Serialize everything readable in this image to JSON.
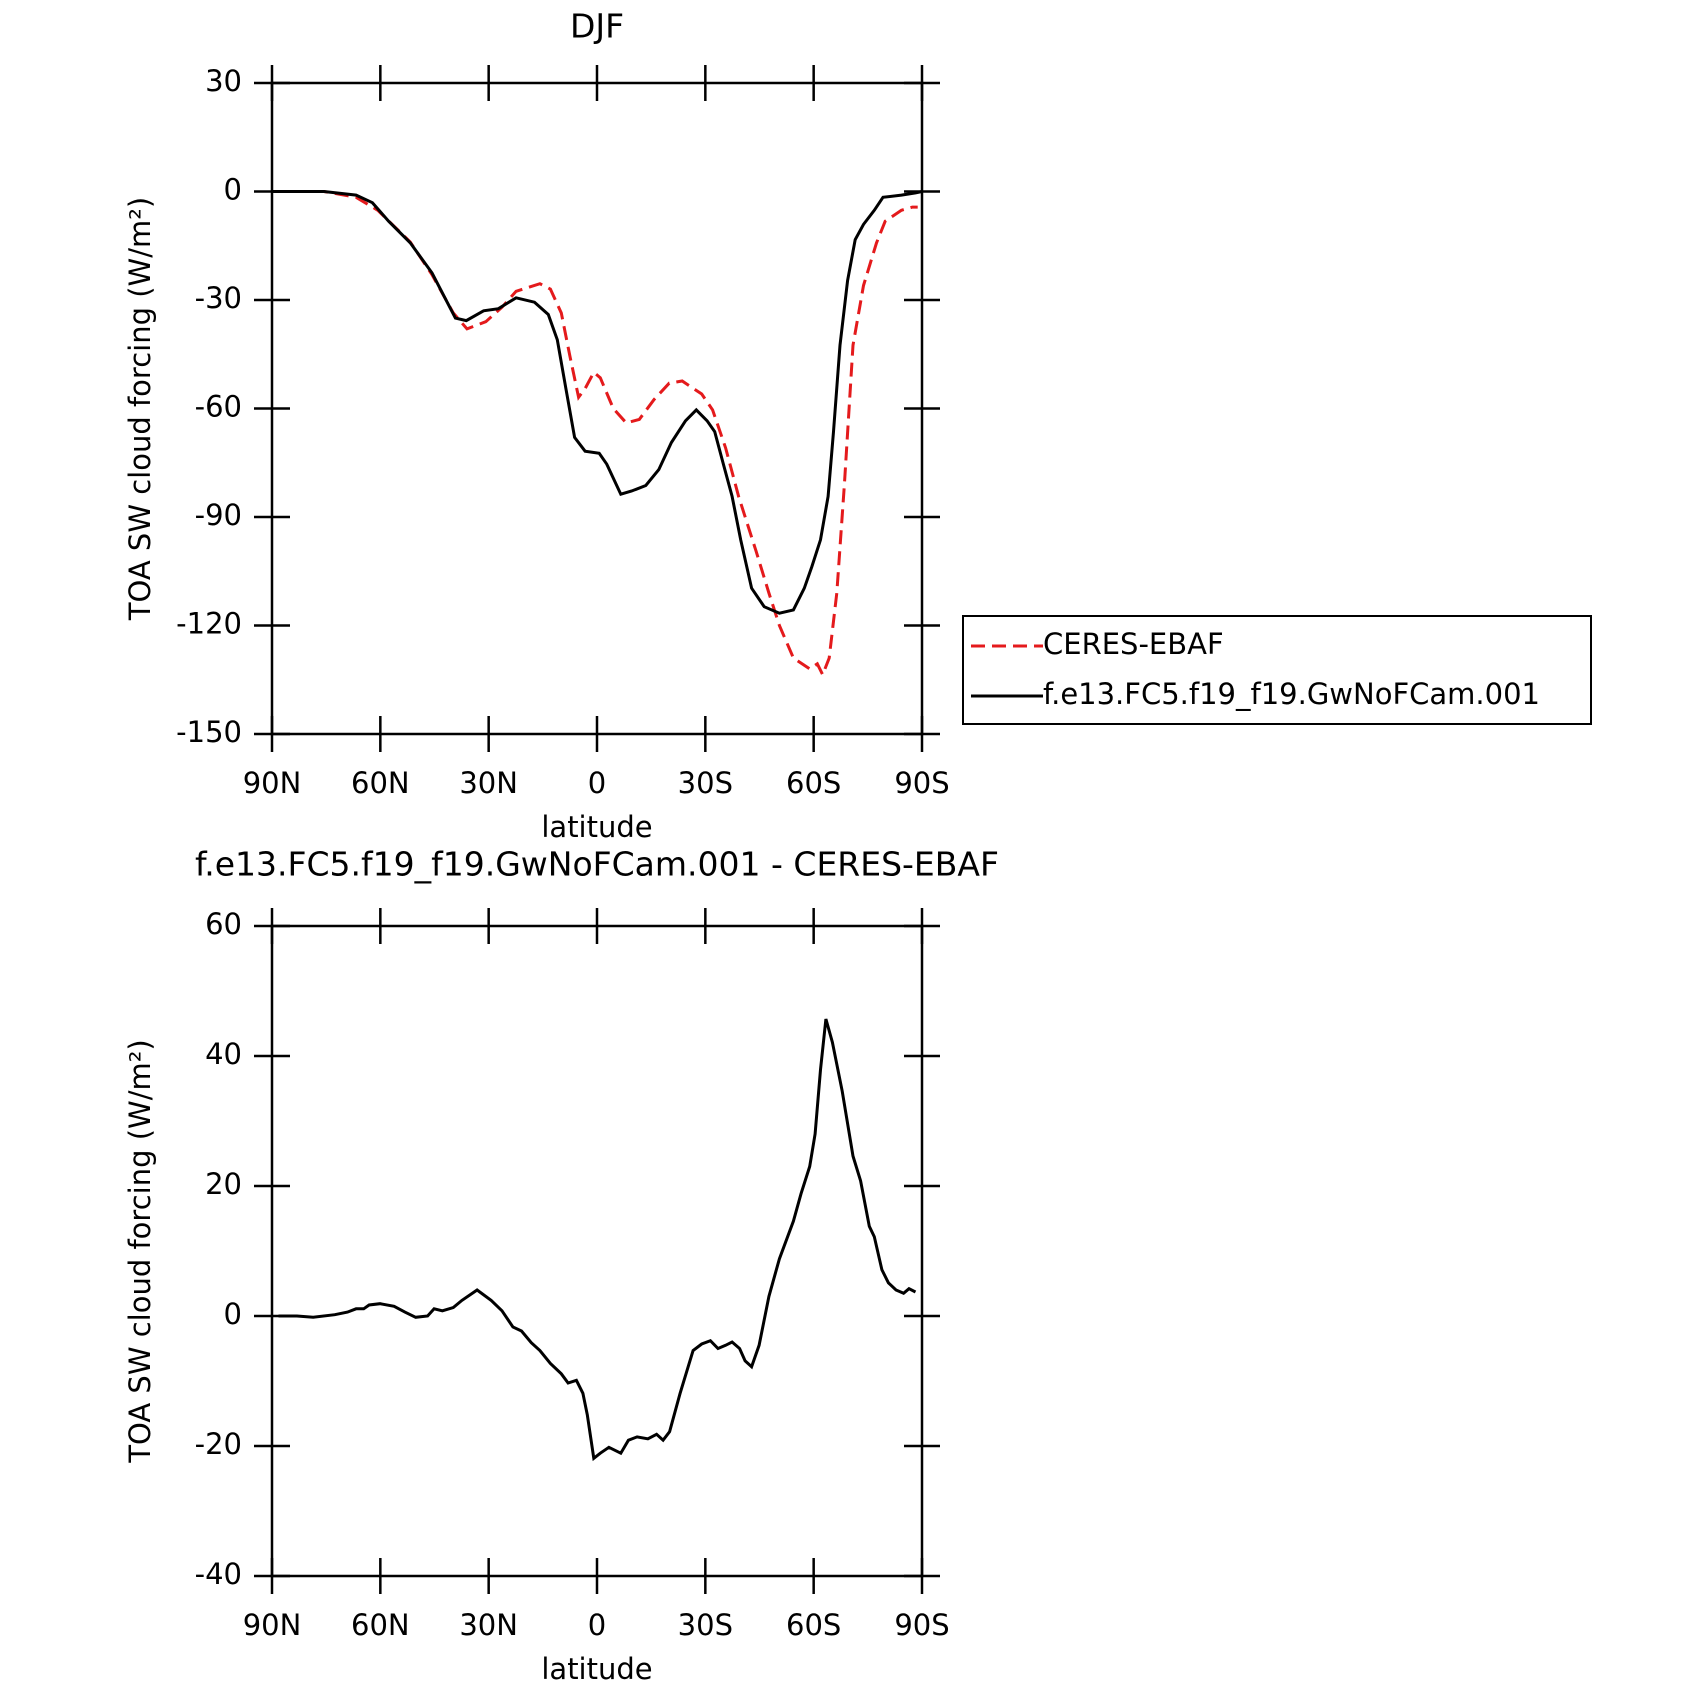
{
  "chart_data": [
    {
      "type": "line",
      "title": "DJF",
      "xlabel": "latitude",
      "ylabel": "TOA SW cloud forcing (W/m²)",
      "xlim": [
        90,
        -90
      ],
      "xticks": [
        {
          "value": 90,
          "label": "90N"
        },
        {
          "value": 60,
          "label": "60N"
        },
        {
          "value": 30,
          "label": "30N"
        },
        0,
        {
          "value": -30,
          "label": "30S"
        },
        {
          "value": -60,
          "label": "60S"
        },
        {
          "value": -90,
          "label": "90S"
        }
      ],
      "ylim": [
        -150,
        30
      ],
      "yticks": [
        -150,
        -120,
        -90,
        -60,
        -30,
        0,
        30
      ],
      "legend": "right",
      "series": [
        {
          "name": "CERES-EBAF",
          "color": "#e41a1c",
          "dash": true,
          "x": [
            90,
            75.6,
            66.7,
            60.7,
            51.7,
            45.7,
            39.8,
            36,
            30.8,
            26.3,
            22.4,
            15.8,
            12.9,
            9.9,
            7.5,
            5.1,
            3.3,
            0.9,
            -0.9,
            -4.5,
            -8.1,
            -11.7,
            -15.8,
            -20,
            -23.6,
            -29,
            -32,
            -35.6,
            -39.2,
            -44,
            -47.6,
            -50.5,
            -54.4,
            -58.9,
            -61,
            -62.5,
            -64.3,
            -66.4,
            -68.5,
            -70.9,
            -73.8,
            -77.4,
            -79.8,
            -84.3,
            -87.3,
            -88.8
          ],
          "values": [
            0,
            0,
            -1.6,
            -5.2,
            -14,
            -23,
            -33.6,
            -38,
            -36,
            -32,
            -27.6,
            -25.5,
            -27,
            -33.6,
            -45.5,
            -56.9,
            -54.5,
            -50,
            -51.5,
            -60,
            -64,
            -63,
            -57.5,
            -53,
            -52.4,
            -56,
            -60.4,
            -70.9,
            -84.3,
            -99.3,
            -111,
            -120,
            -129,
            -132,
            -130.6,
            -133.6,
            -129,
            -111,
            -81,
            -42.5,
            -26,
            -14.2,
            -8.2,
            -5.2,
            -4.3,
            -4.3
          ]
        },
        {
          "name": "f.e13.FC5.f19_f19.GwNoFCam.001",
          "color": "#000000",
          "dash": false,
          "x": [
            90,
            75.6,
            66.7,
            62.2,
            57.7,
            51.7,
            45.7,
            39.2,
            36.2,
            31.4,
            27.3,
            22.4,
            17.3,
            13.5,
            11,
            8.6,
            6.2,
            3.3,
            -0.6,
            -2.7,
            -6.6,
            -9.6,
            -13.5,
            -17.1,
            -20.6,
            -24.5,
            -27.5,
            -30.5,
            -32.6,
            -35,
            -37.4,
            -39.8,
            -42.8,
            -46.3,
            -50.5,
            -54.4,
            -57.4,
            -59.5,
            -61.9,
            -64,
            -65.5,
            -67.3,
            -69.4,
            -71.5,
            -73.8,
            -76.8,
            -79.2,
            -84.3,
            -88.2,
            -90
          ],
          "values": [
            0,
            0,
            -1,
            -3.1,
            -8.2,
            -14.2,
            -22.5,
            -35,
            -35.7,
            -33,
            -32.4,
            -29.4,
            -30.6,
            -34,
            -41,
            -54.5,
            -68,
            -71.8,
            -72.4,
            -75.4,
            -83.7,
            -82.8,
            -81.3,
            -76.9,
            -69.4,
            -63.4,
            -60.4,
            -63.4,
            -66.4,
            -75.4,
            -84.3,
            -96.3,
            -109.7,
            -114.8,
            -116.6,
            -115.7,
            -109.7,
            -103.7,
            -96.3,
            -84.3,
            -66.4,
            -42.5,
            -24.6,
            -13.3,
            -9.1,
            -5.2,
            -1.6,
            -1,
            -0.4,
            0
          ]
        }
      ]
    },
    {
      "type": "line",
      "title": "f.e13.FC5.f19_f19.GwNoFCam.001 - CERES-EBAF",
      "xlabel": "latitude",
      "ylabel": "TOA SW cloud forcing (W/m²)",
      "xlim": [
        90,
        -90
      ],
      "xticks": [
        {
          "value": 90,
          "label": "90N"
        },
        {
          "value": 60,
          "label": "60N"
        },
        {
          "value": 30,
          "label": "30N"
        },
        0,
        {
          "value": -30,
          "label": "30S"
        },
        {
          "value": -60,
          "label": "60S"
        },
        {
          "value": -90,
          "label": "90S"
        }
      ],
      "ylim": [
        -40,
        60
      ],
      "yticks": [
        -40,
        -20,
        0,
        20,
        40,
        60
      ],
      "series": [
        {
          "color": "#000000",
          "dash": false,
          "x": [
            88.2,
            83.1,
            78.6,
            72.6,
            69.1,
            66.7,
            64.6,
            63.1,
            60.1,
            56.2,
            53.2,
            50.2,
            46.9,
            45.1,
            42.8,
            39.8,
            37.4,
            33.2,
            29.3,
            26.3,
            23.3,
            20.9,
            18.2,
            15.8,
            12.9,
            9.9,
            8,
            5.7,
            3.9,
            2.7,
            0.9,
            -0.9,
            -3.3,
            -6.6,
            -8.7,
            -11.1,
            -14.1,
            -16.5,
            -18.3,
            -20.1,
            -23,
            -26.6,
            -29,
            -31.4,
            -33.5,
            -35.6,
            -37.4,
            -39.5,
            -41,
            -42.8,
            -44.9,
            -47.6,
            -50.5,
            -54.4,
            -56.5,
            -58.9,
            -60.4,
            -61.9,
            -63.4,
            -65.2,
            -67.9,
            -70.9,
            -73,
            -75.4,
            -76.8,
            -78.9,
            -80.7,
            -82.8,
            -84.9,
            -86.4,
            -88.2
          ],
          "values": [
            0,
            0,
            -0.2,
            0.2,
            0.6,
            1.1,
            1.1,
            1.7,
            1.9,
            1.5,
            0.6,
            -0.2,
            0,
            1.1,
            0.8,
            1.3,
            2.4,
            4,
            2.4,
            0.8,
            -1.7,
            -2.3,
            -4.1,
            -5.3,
            -7.3,
            -8.9,
            -10.3,
            -9.9,
            -11.9,
            -15.2,
            -21.9,
            -21.1,
            -20.2,
            -21.1,
            -19.1,
            -18.6,
            -18.9,
            -18.2,
            -19.1,
            -17.8,
            -11.9,
            -5.3,
            -4.3,
            -3.8,
            -5,
            -4.5,
            -4,
            -5,
            -6.9,
            -7.8,
            -4.5,
            3,
            8.8,
            14.6,
            18.8,
            23,
            28,
            37.9,
            45.7,
            42.1,
            34.6,
            24.6,
            20.8,
            13.8,
            12.2,
            7.1,
            5.1,
            4,
            3.5,
            4.2,
            3.7
          ]
        }
      ]
    }
  ]
}
